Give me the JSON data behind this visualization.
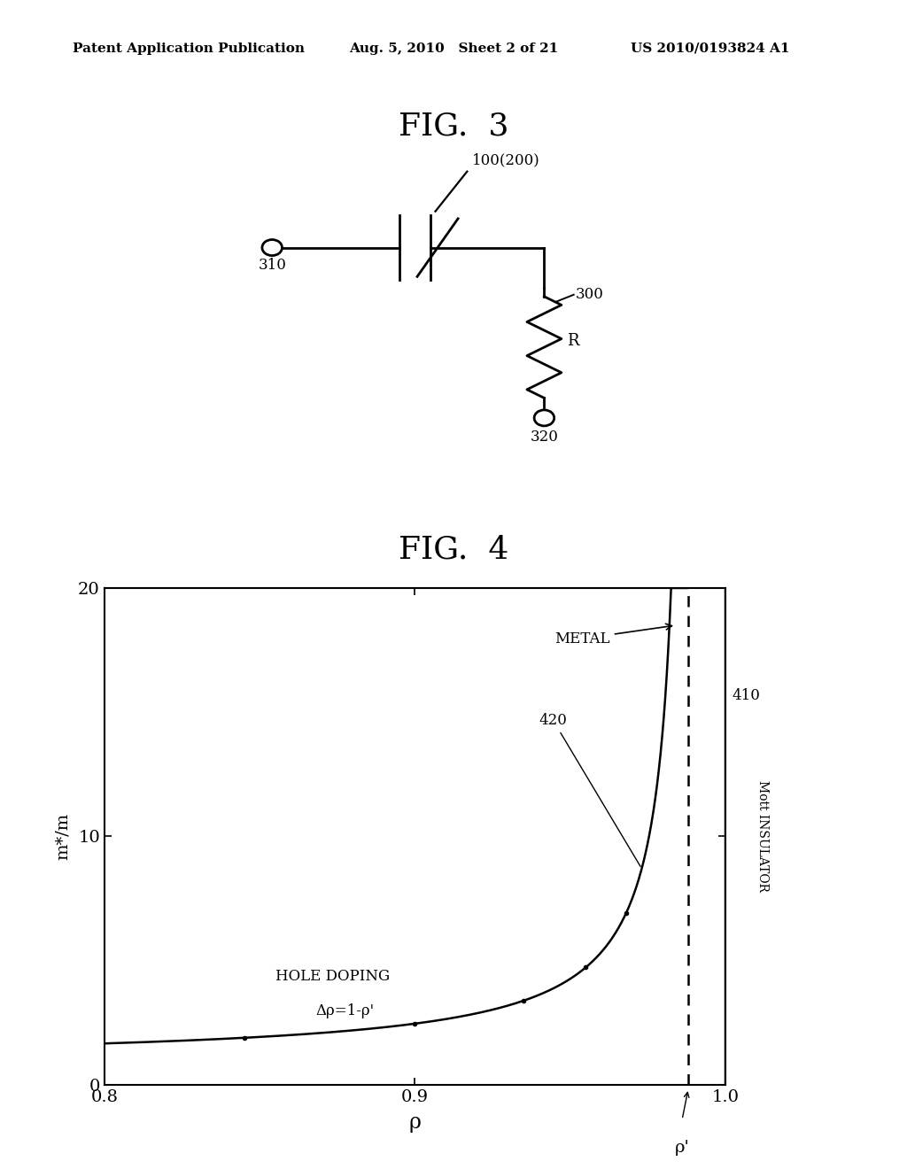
{
  "header_left": "Patent Application Publication",
  "header_mid": "Aug. 5, 2010   Sheet 2 of 21",
  "header_right": "US 2010/0193824 A1",
  "fig3_title": "FIG.  3",
  "fig4_title": "FIG.  4",
  "background_color": "#ffffff",
  "fig4": {
    "xlabel": "ρ",
    "ylabel": "m*/m",
    "xlim_plot": [
      0.8,
      1.0
    ],
    "ylim": [
      0,
      20
    ],
    "xticks": [
      0.8,
      0.9,
      1.0
    ],
    "yticks": [
      0,
      10,
      20
    ],
    "rho_prime": 0.988,
    "label_metal": "METAL",
    "label_420": "420",
    "label_410": "410",
    "label_hole_doping": "HOLE DOPING",
    "label_delta_rho": "Δρ=1-ρ'",
    "label_rho_prime": "ρ'",
    "label_mott": "Mott INSULATOR"
  }
}
